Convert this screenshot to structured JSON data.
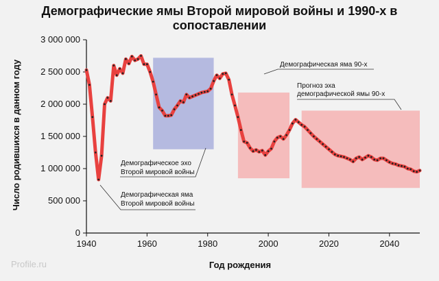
{
  "chart_data": {
    "type": "line",
    "title": "Демографические ямы Второй мировой войны и 1990-х в сопоставлении",
    "xlabel": "Год рождения",
    "ylabel": "Число родившихся в данном году",
    "xlim": [
      1940,
      2050
    ],
    "ylim": [
      0,
      3000000
    ],
    "x_ticks": [
      "1940",
      "1960",
      "1980",
      "2000",
      "2020",
      "2040"
    ],
    "y_ticks": [
      "0",
      "500 000",
      "1 000 000",
      "1 500 000",
      "2 000 000",
      "2 500 000",
      "3 000 000"
    ],
    "grid": false,
    "colors": {
      "line": "#e8413f",
      "dots": "#222222",
      "echo_box": "#aab0dd",
      "gap_box": "#f6b3b3"
    },
    "series": [
      {
        "x": [
          1940,
          1941,
          1942,
          1943,
          1944,
          1945,
          1946,
          1947,
          1948,
          1949,
          1950,
          1951,
          1952,
          1953,
          1954,
          1955,
          1956,
          1957,
          1958,
          1959,
          1960,
          1961,
          1962,
          1963,
          1964,
          1965,
          1966,
          1967,
          1968,
          1969,
          1970,
          1971,
          1972,
          1973,
          1974,
          1975,
          1976,
          1977,
          1978,
          1979,
          1980,
          1981,
          1982,
          1983,
          1984,
          1985,
          1986,
          1987,
          1988,
          1989,
          1990,
          1991,
          1992,
          1993,
          1994,
          1995,
          1996,
          1997,
          1998,
          1999,
          2000,
          2001,
          2002,
          2003,
          2004,
          2005,
          2006,
          2007,
          2008,
          2009,
          2010,
          2011,
          2012,
          2013,
          2014,
          2015,
          2016,
          2017,
          2018,
          2019,
          2020,
          2021,
          2022,
          2023,
          2024,
          2025,
          2026,
          2027,
          2028,
          2029,
          2030,
          2031,
          2032,
          2033,
          2034,
          2035,
          2036,
          2037,
          2038,
          2039,
          2040,
          2041,
          2042,
          2043,
          2044,
          2045,
          2046,
          2047,
          2048,
          2049,
          2050
        ],
        "y": [
          2530000,
          2300000,
          1800000,
          1250000,
          830000,
          1200000,
          2000000,
          2100000,
          2050000,
          2600000,
          2450000,
          2550000,
          2480000,
          2700000,
          2630000,
          2740000,
          2680000,
          2700000,
          2750000,
          2620000,
          2620000,
          2500000,
          2350000,
          2150000,
          1950000,
          1900000,
          1820000,
          1820000,
          1830000,
          1920000,
          1980000,
          2050000,
          2030000,
          2150000,
          2100000,
          2120000,
          2140000,
          2160000,
          2180000,
          2190000,
          2200000,
          2240000,
          2360000,
          2450000,
          2400000,
          2470000,
          2480000,
          2380000,
          2150000,
          1980000,
          1800000,
          1600000,
          1420000,
          1400000,
          1320000,
          1270000,
          1290000,
          1260000,
          1280000,
          1210000,
          1270000,
          1310000,
          1420000,
          1480000,
          1500000,
          1460000,
          1520000,
          1600000,
          1700000,
          1760000,
          1720000,
          1680000,
          1650000,
          1600000,
          1550000,
          1500000,
          1460000,
          1420000,
          1380000,
          1340000,
          1300000,
          1260000,
          1220000,
          1200000,
          1190000,
          1180000,
          1160000,
          1140000,
          1110000,
          1160000,
          1180000,
          1140000,
          1170000,
          1200000,
          1180000,
          1140000,
          1130000,
          1160000,
          1160000,
          1130000,
          1100000,
          1080000,
          1070000,
          1050000,
          1040000,
          1030000,
          1000000,
          990000,
          960000,
          950000,
          970000
        ]
      }
    ],
    "regions": [
      {
        "x": [
          1962,
          1982
        ],
        "y": [
          1300000,
          2720000
        ],
        "kind": "echo_box"
      },
      {
        "x": [
          1990,
          2007
        ],
        "y": [
          850000,
          2180000
        ],
        "kind": "gap_box"
      },
      {
        "x": [
          2011,
          2050
        ],
        "y": [
          700000,
          1900000
        ],
        "kind": "gap_box"
      }
    ],
    "annotations": [
      {
        "lines": [
          "Демографическая яма",
          "Второй мировой войны"
        ]
      },
      {
        "lines": [
          "Демографическое эхо",
          "Второй мировой войны"
        ]
      },
      {
        "lines": [
          "Демографическая яма 90-х"
        ]
      },
      {
        "lines": [
          "Прогноз эха",
          "демографической ямы 90-х"
        ]
      }
    ]
  },
  "watermark": "Profile.ru"
}
